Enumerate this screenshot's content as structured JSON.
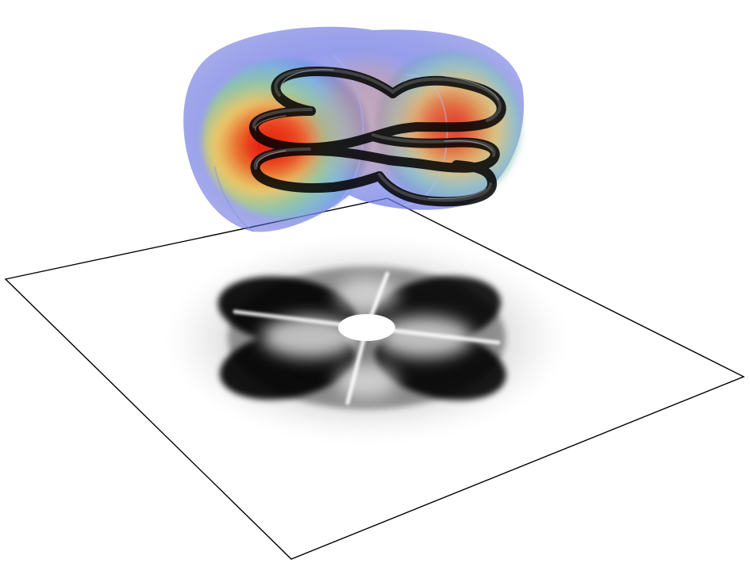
{
  "scene": {
    "colors": {
      "background": "#ffffff",
      "plane_outline": "#000000",
      "knot_tube": "#0b0b0b",
      "field_low": "#5a64d8",
      "field_mid": "#70d0b0",
      "field_high": "#ffd24a",
      "field_peak": "#e81c0c",
      "shadow": "#000000"
    }
  }
}
